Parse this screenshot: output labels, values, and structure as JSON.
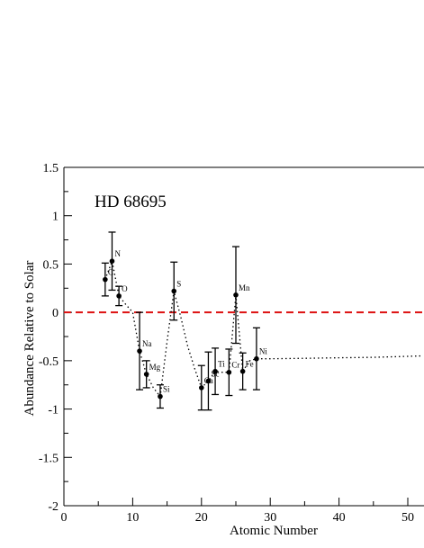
{
  "chart_data": {
    "type": "scatter",
    "annotation": "HD 68695",
    "xlabel": "Atomic Number",
    "ylabel": "Abundance Relative to Solar",
    "xlim": [
      0,
      50
    ],
    "ylim": [
      -2,
      1.5
    ],
    "x_ticks": [
      0,
      10,
      20,
      30,
      40,
      50
    ],
    "y_ticks": [
      1.5,
      1,
      0.5,
      0,
      -0.5,
      -1,
      -1.5,
      -2
    ],
    "x_tick_labels": [
      "0",
      "10",
      "20",
      "30",
      "40",
      "50"
    ],
    "y_tick_labels": [
      "1.5",
      "1",
      "0.5",
      "0",
      "-0.5",
      "-1",
      "-1.5",
      "-2"
    ],
    "solar_reference_y": 0,
    "solar_reference_color": "#dd1111",
    "points": [
      {
        "z": 6,
        "label": "C",
        "y": 0.34,
        "err": 0.17
      },
      {
        "z": 7,
        "label": "N",
        "y": 0.53,
        "err": 0.3
      },
      {
        "z": 8,
        "label": "O",
        "y": 0.17,
        "err": 0.1
      },
      {
        "z": 11,
        "label": "Na",
        "y": -0.4,
        "err": 0.4
      },
      {
        "z": 12,
        "label": "Mg",
        "y": -0.64,
        "err": 0.14
      },
      {
        "z": 14,
        "label": "Si",
        "y": -0.87,
        "err": 0.12
      },
      {
        "z": 16,
        "label": "S",
        "y": 0.22,
        "err": 0.3
      },
      {
        "z": 20,
        "label": "Ca",
        "y": -0.78,
        "err": 0.23
      },
      {
        "z": 21,
        "label": "Sc",
        "y": -0.71,
        "err": 0.3
      },
      {
        "z": 22,
        "label": "Ti",
        "y": -0.61,
        "err": 0.24
      },
      {
        "z": 24,
        "label": "Cr",
        "y": -0.62,
        "err": 0.24
      },
      {
        "z": 25,
        "label": "Mn",
        "y": 0.18,
        "err": 0.5
      },
      {
        "z": 26,
        "label": "Fe",
        "y": -0.61,
        "err": 0.19
      },
      {
        "z": 28,
        "label": "Ni",
        "y": -0.48,
        "err": 0.32
      }
    ],
    "model_curve": [
      [
        6,
        0.34
      ],
      [
        7,
        0.53
      ],
      [
        8,
        0.17
      ],
      [
        9,
        0.08
      ],
      [
        10,
        0.0
      ],
      [
        11,
        -0.4
      ],
      [
        12,
        -0.64
      ],
      [
        13,
        -0.78
      ],
      [
        14,
        -0.87
      ],
      [
        15,
        -0.3
      ],
      [
        16,
        0.22
      ],
      [
        17,
        -0.05
      ],
      [
        18,
        -0.35
      ],
      [
        19,
        -0.58
      ],
      [
        20,
        -0.78
      ],
      [
        21,
        -0.71
      ],
      [
        22,
        -0.61
      ],
      [
        23,
        -0.62
      ],
      [
        24,
        -0.62
      ],
      [
        25,
        0.18
      ],
      [
        26,
        -0.61
      ],
      [
        27,
        -0.5
      ],
      [
        28,
        -0.48
      ],
      [
        30,
        -0.48
      ],
      [
        35,
        -0.475
      ],
      [
        40,
        -0.47
      ],
      [
        45,
        -0.465
      ],
      [
        50,
        -0.455
      ],
      [
        52,
        -0.45
      ]
    ]
  }
}
